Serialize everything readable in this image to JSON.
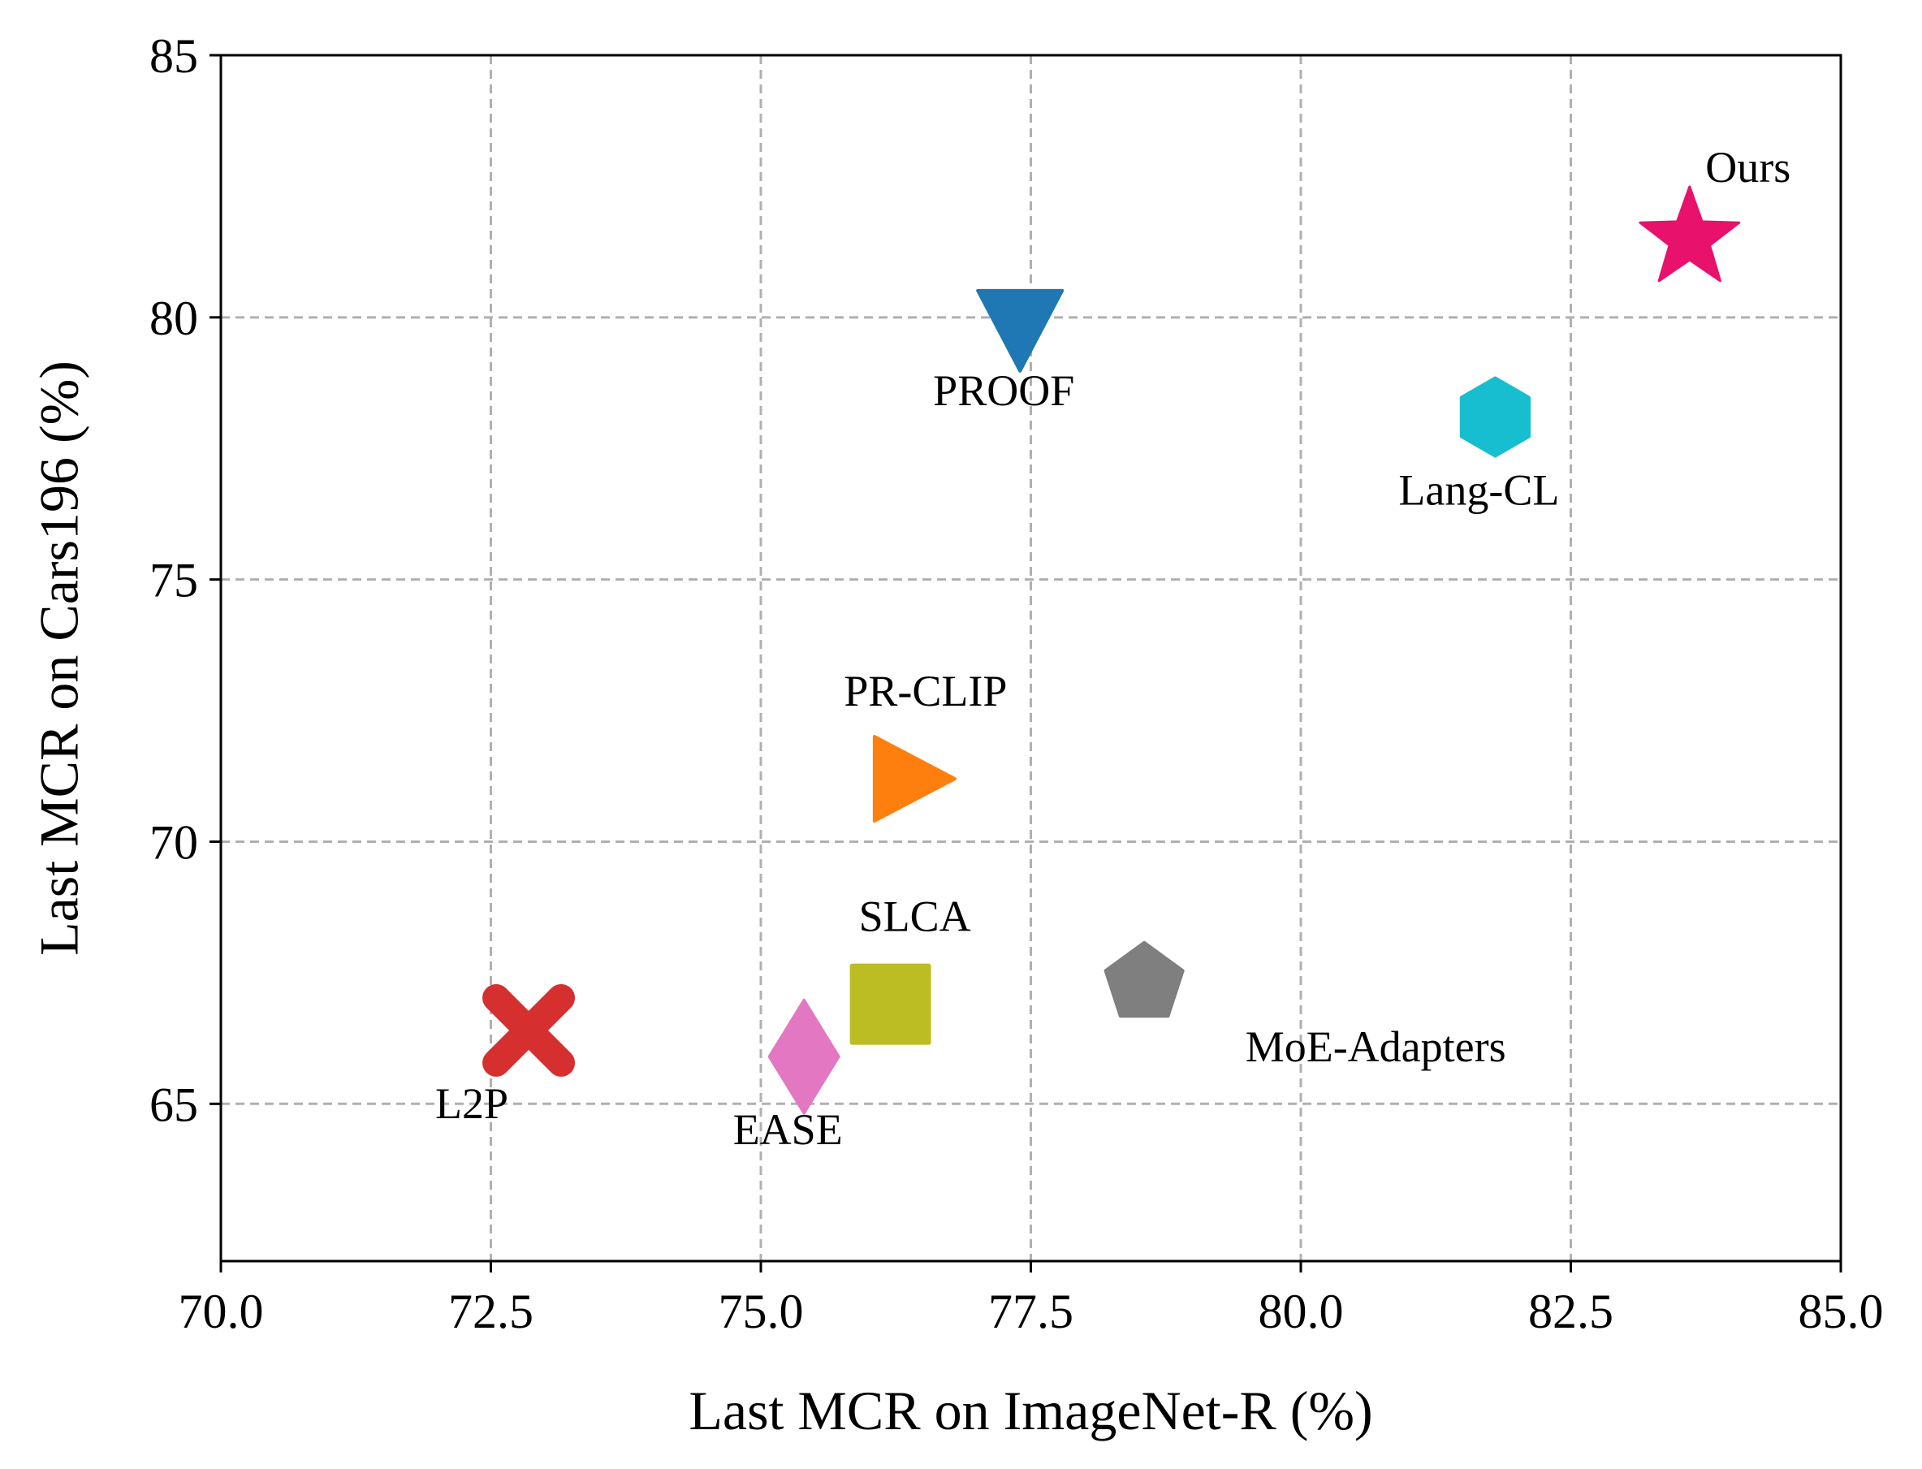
{
  "chart_data": {
    "type": "scatter",
    "title": "",
    "xlabel": "Last MCR on ImageNet-R (%)",
    "ylabel": "Last MCR on Cars196 (%)",
    "xlim": [
      70.0,
      85.0
    ],
    "ylim": [
      62.0,
      85.0
    ],
    "xticks": [
      70.0,
      72.5,
      75.0,
      77.5,
      80.0,
      82.5,
      85.0
    ],
    "xtick_labels": [
      "70.0",
      "72.5",
      "75.0",
      "77.5",
      "80.0",
      "82.5",
      "85.0"
    ],
    "yticks": [
      65,
      70,
      75,
      80,
      85
    ],
    "ytick_labels": [
      "65",
      "70",
      "75",
      "80",
      "85"
    ],
    "grid": true,
    "grid_style": "dashed",
    "points": [
      {
        "name": "L2P",
        "x": 72.85,
        "y": 66.4,
        "marker": "X",
        "color": "#d62f2f",
        "label_anchor": "below-left"
      },
      {
        "name": "EASE",
        "x": 75.4,
        "y": 65.9,
        "marker": "diamond",
        "color": "#e377c2",
        "label_anchor": "below"
      },
      {
        "name": "SLCA",
        "x": 76.2,
        "y": 66.9,
        "marker": "square",
        "color": "#bcbd22",
        "label_anchor": "above"
      },
      {
        "name": "MoE-Adapters",
        "x": 78.55,
        "y": 67.3,
        "marker": "pentagon",
        "color": "#7f7f7f",
        "label_anchor": "below-right"
      },
      {
        "name": "PR-CLIP",
        "x": 76.3,
        "y": 71.2,
        "marker": "triangle-right",
        "color": "#ff7f0e",
        "label_anchor": "above"
      },
      {
        "name": "PROOF",
        "x": 77.4,
        "y": 80.0,
        "marker": "triangle-down",
        "color": "#1f77b4",
        "label_anchor": "below"
      },
      {
        "name": "Lang-CL",
        "x": 81.8,
        "y": 78.1,
        "marker": "hexagon",
        "color": "#17becf",
        "label_anchor": "below"
      },
      {
        "name": "Ours",
        "x": 83.6,
        "y": 81.5,
        "marker": "star",
        "color": "#e8116b",
        "label_anchor": "above-right"
      }
    ]
  }
}
